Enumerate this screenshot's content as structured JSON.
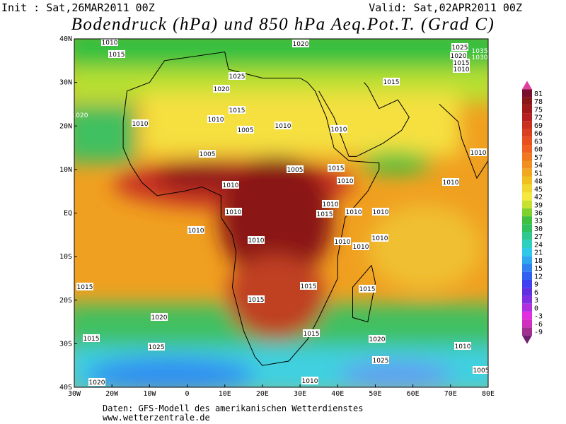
{
  "header": {
    "init": "Init : Sat,26MAR2011 00Z",
    "valid": "Valid: Sat,02APR2011 00Z",
    "title": "Bodendruck (hPa) und 850 hPa Aeq.Pot.T. (Grad C)"
  },
  "map": {
    "lat_labels": [
      "40N",
      "30N",
      "20N",
      "10N",
      "EQ",
      "10S",
      "20S",
      "30S",
      "40S"
    ],
    "lon_labels": [
      "30W",
      "20W",
      "10W",
      "0",
      "10E",
      "20E",
      "30E",
      "40E",
      "50E",
      "60E",
      "70E",
      "80E"
    ],
    "isobar_labels": [
      "1010",
      "1015",
      "1020",
      "1025",
      "1035",
      "1020",
      "1030",
      "1015",
      "1010",
      "1025",
      "1020",
      "1015",
      "1015",
      "1020",
      "1010",
      "1010",
      "1005",
      "1010",
      "1010",
      "1005",
      "1010",
      "1005",
      "1015",
      "1010",
      "1010",
      "1010",
      "1010",
      "1015",
      "1010",
      "1010",
      "1010",
      "1010",
      "1010",
      "1010",
      "1010",
      "1010",
      "1015",
      "1015",
      "1015",
      "1015",
      "1020",
      "1015",
      "1015",
      "1020",
      "1025",
      "1010",
      "1025",
      "1005",
      "1020",
      "1010"
    ]
  },
  "colorbar": {
    "labels": [
      "81",
      "78",
      "75",
      "72",
      "69",
      "66",
      "63",
      "60",
      "57",
      "54",
      "51",
      "48",
      "45",
      "42",
      "39",
      "36",
      "33",
      "30",
      "27",
      "24",
      "21",
      "18",
      "15",
      "12",
      "9",
      "6",
      "3",
      "0",
      "-3",
      "-6",
      "-9"
    ]
  },
  "footer": {
    "source": "Daten: GFS-Modell des amerikanischen Wetterdienstes",
    "url": "www.wetterzentrale.de"
  }
}
